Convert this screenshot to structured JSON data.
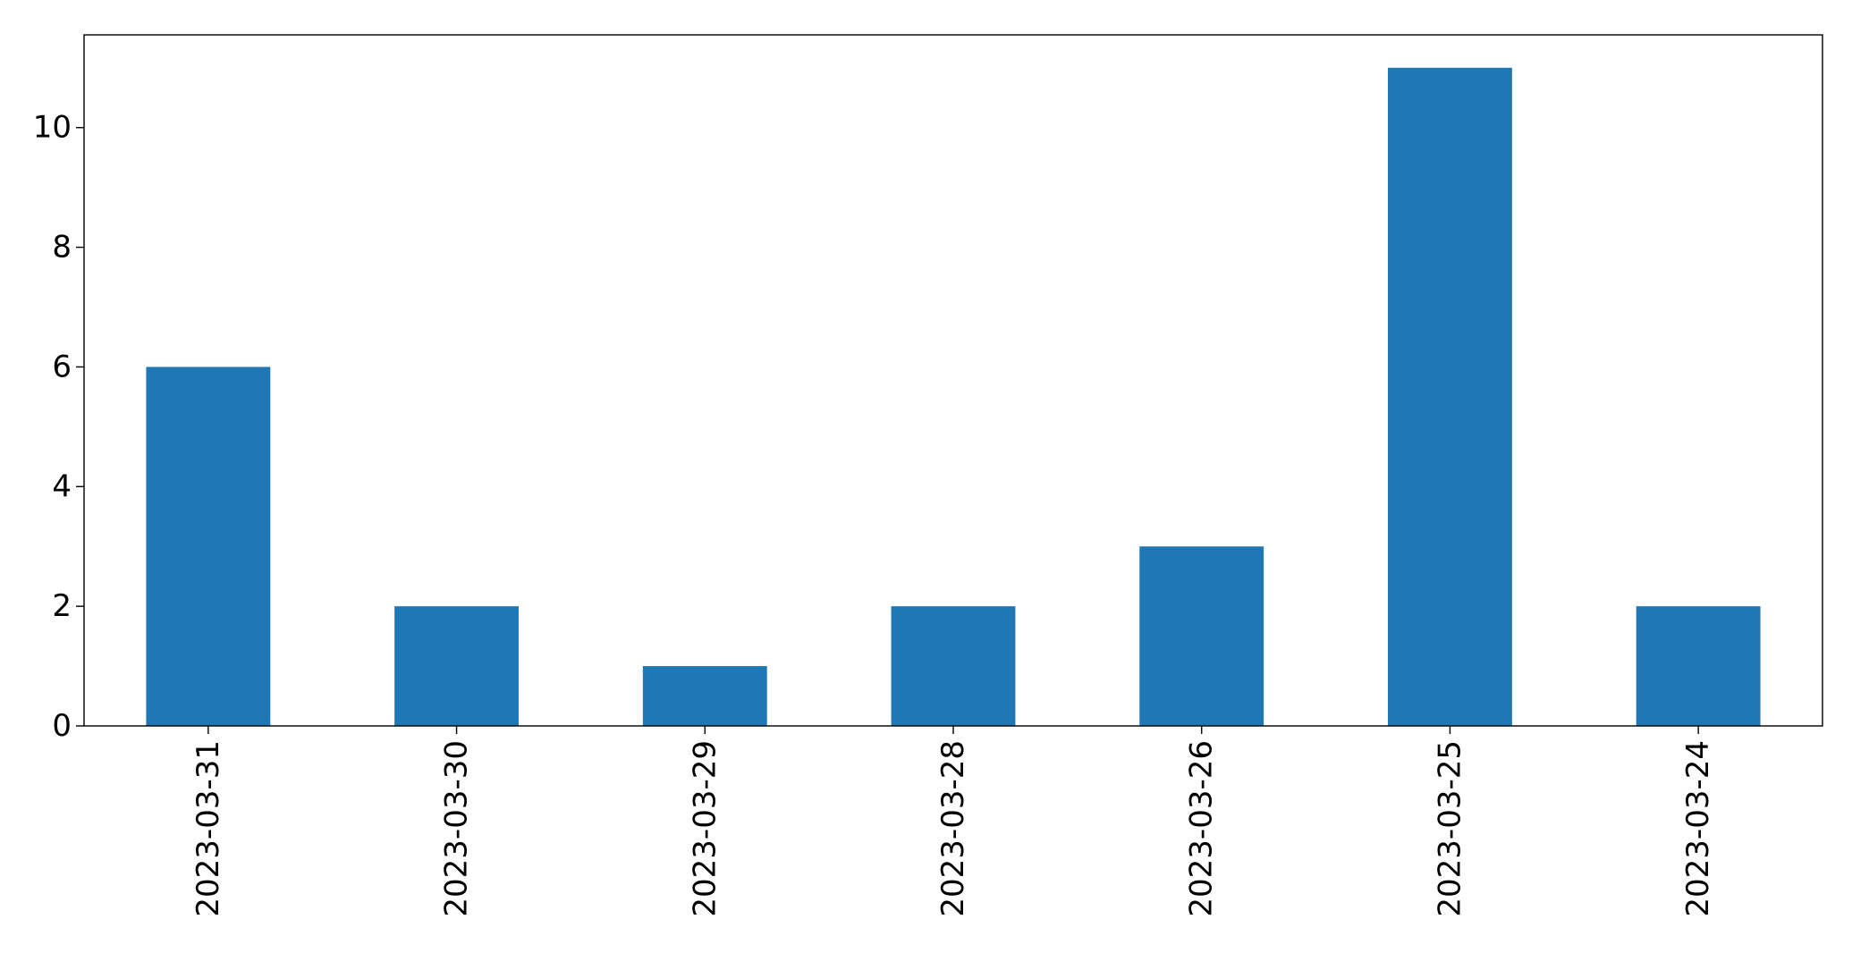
{
  "chart_data": {
    "type": "bar",
    "title": "",
    "xlabel": "",
    "ylabel": "",
    "categories": [
      "2023-03-31",
      "2023-03-30",
      "2023-03-29",
      "2023-03-28",
      "2023-03-26",
      "2023-03-25",
      "2023-03-24"
    ],
    "series": [
      {
        "values": [
          6,
          2,
          1,
          2,
          3,
          11,
          2
        ]
      }
    ],
    "ylim": [
      0,
      11.55
    ],
    "yticks": [
      0,
      2,
      4,
      6,
      8,
      10
    ],
    "x_tick_rotation": "vertical",
    "grid": false,
    "legend": "none",
    "colors": {
      "bar": "#1f77b4",
      "axis": "#000000",
      "background": "#ffffff"
    }
  }
}
